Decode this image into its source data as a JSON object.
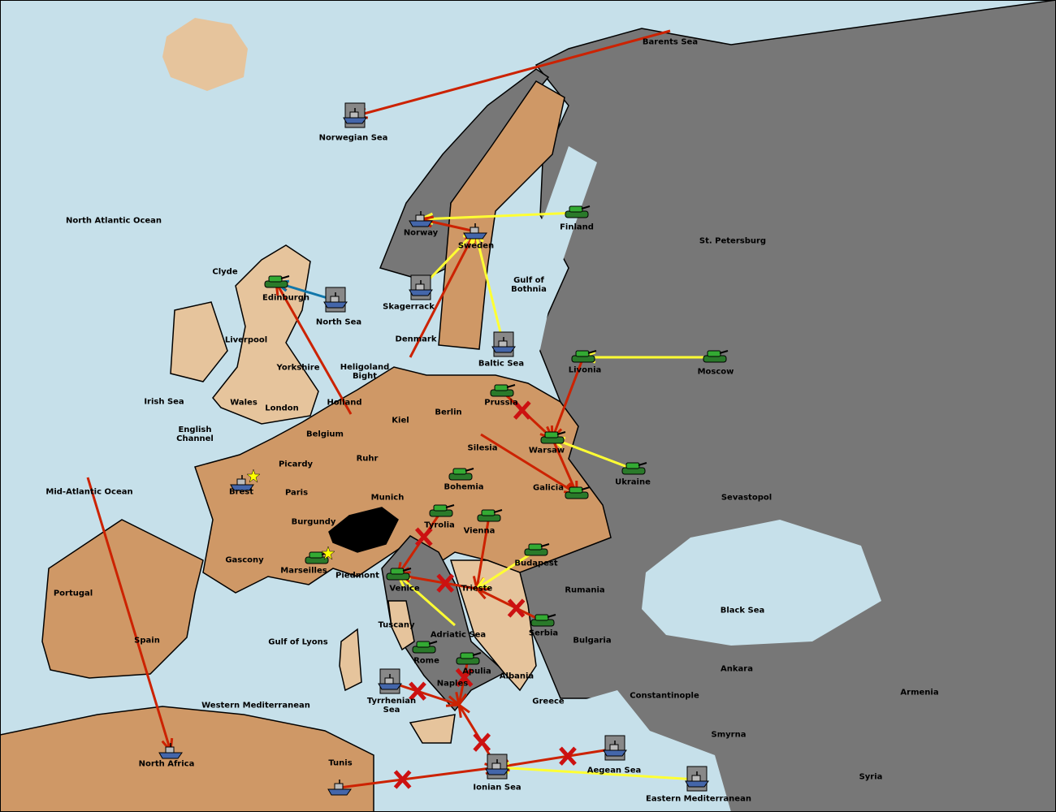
{
  "colors": {
    "sea": "#c6e0ea",
    "neutral_land": "#e6c49c",
    "power_brown": "#cf9866",
    "power_grey": "#777777",
    "support_order": "#ffff33",
    "move_order": "#cc2200",
    "convoy_order": "#1177aa",
    "army_unit": "#33aa33",
    "fleet_unit": "#4466aa"
  },
  "provinces": [
    {
      "id": "bar",
      "name": "Barents Sea"
    },
    {
      "id": "nwg",
      "name": "Norwegian Sea"
    },
    {
      "id": "nao",
      "name": "North Atlantic Ocean"
    },
    {
      "id": "nwy",
      "name": "Norway"
    },
    {
      "id": "swe",
      "name": "Sweden"
    },
    {
      "id": "fin",
      "name": "Finland"
    },
    {
      "id": "stp",
      "name": "St. Petersburg"
    },
    {
      "id": "cly",
      "name": "Clyde"
    },
    {
      "id": "edi",
      "name": "Edinburgh"
    },
    {
      "id": "nth",
      "name": "North Sea"
    },
    {
      "id": "ska",
      "name": "Skagerrack"
    },
    {
      "id": "bot",
      "name": "Gulf of Bothnia"
    },
    {
      "id": "lvp",
      "name": "Liverpool"
    },
    {
      "id": "den",
      "name": "Denmark"
    },
    {
      "id": "bal",
      "name": "Baltic Sea"
    },
    {
      "id": "yor",
      "name": "Yorkshire"
    },
    {
      "id": "hel",
      "name": "Heligoland Bight"
    },
    {
      "id": "lvn",
      "name": "Livonia"
    },
    {
      "id": "mos",
      "name": "Moscow"
    },
    {
      "id": "iri",
      "name": "Irish Sea"
    },
    {
      "id": "wal",
      "name": "Wales"
    },
    {
      "id": "hol",
      "name": "Holland"
    },
    {
      "id": "pru",
      "name": "Prussia"
    },
    {
      "id": "lon",
      "name": "London"
    },
    {
      "id": "ber",
      "name": "Berlin"
    },
    {
      "id": "kie",
      "name": "Kiel"
    },
    {
      "id": "eng",
      "name": "English Channel"
    },
    {
      "id": "bel",
      "name": "Belgium"
    },
    {
      "id": "war",
      "name": "Warsaw"
    },
    {
      "id": "sil",
      "name": "Silesia"
    },
    {
      "id": "ruh",
      "name": "Ruhr"
    },
    {
      "id": "pic",
      "name": "Picardy"
    },
    {
      "id": "ukr",
      "name": "Ukraine"
    },
    {
      "id": "bre",
      "name": "Brest"
    },
    {
      "id": "par",
      "name": "Paris"
    },
    {
      "id": "mao",
      "name": "Mid-Atlantic Ocean"
    },
    {
      "id": "boh",
      "name": "Bohemia"
    },
    {
      "id": "gal",
      "name": "Galicia"
    },
    {
      "id": "mun",
      "name": "Munich"
    },
    {
      "id": "sev",
      "name": "Sevastopol"
    },
    {
      "id": "bur",
      "name": "Burgundy"
    },
    {
      "id": "tyr",
      "name": "Tyrolia"
    },
    {
      "id": "vie",
      "name": "Vienna"
    },
    {
      "id": "gas",
      "name": "Gascony"
    },
    {
      "id": "bud",
      "name": "Budapest"
    },
    {
      "id": "mar",
      "name": "Marseilles"
    },
    {
      "id": "pie",
      "name": "Piedmont"
    },
    {
      "id": "ven",
      "name": "Venice"
    },
    {
      "id": "tri",
      "name": "Trieste"
    },
    {
      "id": "rum",
      "name": "Rumania"
    },
    {
      "id": "por",
      "name": "Portugal"
    },
    {
      "id": "bla",
      "name": "Black Sea"
    },
    {
      "id": "tus",
      "name": "Tuscany"
    },
    {
      "id": "adr",
      "name": "Adriatic Sea"
    },
    {
      "id": "ser",
      "name": "Serbia"
    },
    {
      "id": "bul",
      "name": "Bulgaria"
    },
    {
      "id": "spa",
      "name": "Spain"
    },
    {
      "id": "lyo",
      "name": "Gulf of Lyons"
    },
    {
      "id": "rom",
      "name": "Rome"
    },
    {
      "id": "apu",
      "name": "Apulia"
    },
    {
      "id": "alb",
      "name": "Albania"
    },
    {
      "id": "ank",
      "name": "Ankara"
    },
    {
      "id": "nap",
      "name": "Naples"
    },
    {
      "id": "arm",
      "name": "Armenia"
    },
    {
      "id": "con",
      "name": "Constantinople"
    },
    {
      "id": "gre",
      "name": "Greece"
    },
    {
      "id": "wes",
      "name": "Western Mediterranean"
    },
    {
      "id": "tys",
      "name": "Tyrrhenian Sea"
    },
    {
      "id": "smy",
      "name": "Smyrna"
    },
    {
      "id": "tun",
      "name": "Tunis"
    },
    {
      "id": "naf",
      "name": "North Africa"
    },
    {
      "id": "aeg",
      "name": "Aegean Sea"
    },
    {
      "id": "syr",
      "name": "Syria"
    },
    {
      "id": "ion",
      "name": "Ionian Sea"
    },
    {
      "id": "eas",
      "name": "Eastern Mediterranean"
    }
  ],
  "units": [
    {
      "type": "army",
      "at": "fin"
    },
    {
      "type": "army",
      "at": "edi"
    },
    {
      "type": "army",
      "at": "lvn"
    },
    {
      "type": "army",
      "at": "mos"
    },
    {
      "type": "army",
      "at": "pru"
    },
    {
      "type": "army",
      "at": "war"
    },
    {
      "type": "army",
      "at": "ukr"
    },
    {
      "type": "army",
      "at": "gal"
    },
    {
      "type": "army",
      "at": "boh"
    },
    {
      "type": "army",
      "at": "tyr"
    },
    {
      "type": "army",
      "at": "vie"
    },
    {
      "type": "army",
      "at": "bud"
    },
    {
      "type": "army",
      "at": "mar"
    },
    {
      "type": "army",
      "at": "ven"
    },
    {
      "type": "army",
      "at": "ser"
    },
    {
      "type": "army",
      "at": "rom"
    },
    {
      "type": "army",
      "at": "apu"
    },
    {
      "type": "fleet",
      "at": "nwg",
      "shield": true
    },
    {
      "type": "fleet",
      "at": "nwy"
    },
    {
      "type": "fleet",
      "at": "swe"
    },
    {
      "type": "fleet",
      "at": "nth",
      "shield": true
    },
    {
      "type": "fleet",
      "at": "ska",
      "shield": true
    },
    {
      "type": "fleet",
      "at": "bal",
      "shield": true
    },
    {
      "type": "fleet",
      "at": "bre"
    },
    {
      "type": "fleet",
      "at": "naf"
    },
    {
      "type": "fleet",
      "at": "tys",
      "shield": true
    },
    {
      "type": "fleet",
      "at": "tun"
    },
    {
      "type": "fleet",
      "at": "ion",
      "shield": true
    },
    {
      "type": "fleet",
      "at": "aeg",
      "shield": true
    },
    {
      "type": "fleet",
      "at": "eas",
      "shield": true
    }
  ],
  "orders": [
    {
      "kind": "move",
      "from": "bar",
      "to": "nwg"
    },
    {
      "kind": "support",
      "from": "fin",
      "to": "nwy"
    },
    {
      "kind": "move",
      "from": "swe",
      "to": "nwy"
    },
    {
      "kind": "move",
      "from": "den",
      "to": "swe"
    },
    {
      "kind": "support",
      "from": "bal",
      "to": "swe"
    },
    {
      "kind": "support",
      "from": "ska",
      "to": "swe"
    },
    {
      "kind": "move",
      "from": "hol",
      "to": "edi"
    },
    {
      "kind": "convoy",
      "from": "nth",
      "to": "edi"
    },
    {
      "kind": "move",
      "from": "mao",
      "to": "naf"
    },
    {
      "kind": "support",
      "from": "mos",
      "to": "lvn"
    },
    {
      "kind": "move",
      "from": "lvn",
      "to": "war"
    },
    {
      "kind": "move",
      "from": "pru",
      "to": "war",
      "failed": true
    },
    {
      "kind": "support",
      "from": "ukr",
      "to": "war"
    },
    {
      "kind": "move",
      "from": "sil",
      "to": "gal"
    },
    {
      "kind": "move",
      "from": "war",
      "to": "gal"
    },
    {
      "kind": "move",
      "from": "tyr",
      "to": "ven",
      "failed": true
    },
    {
      "kind": "move",
      "from": "vie",
      "to": "tri"
    },
    {
      "kind": "move",
      "from": "tri",
      "to": "ven",
      "failed": true
    },
    {
      "kind": "support",
      "from": "bud",
      "to": "tri"
    },
    {
      "kind": "support",
      "from": "adr",
      "to": "ven"
    },
    {
      "kind": "move",
      "from": "ser",
      "to": "tri",
      "failed": true
    },
    {
      "kind": "move",
      "from": "tys",
      "to": "nap",
      "failed": true
    },
    {
      "kind": "move",
      "from": "apu",
      "to": "nap",
      "failed": true
    },
    {
      "kind": "move",
      "from": "ion",
      "to": "nap",
      "failed": true
    },
    {
      "kind": "move",
      "from": "tun",
      "to": "ion",
      "failed": true
    },
    {
      "kind": "move",
      "from": "aeg",
      "to": "ion",
      "failed": true
    },
    {
      "kind": "support",
      "from": "eas",
      "to": "ion"
    }
  ]
}
